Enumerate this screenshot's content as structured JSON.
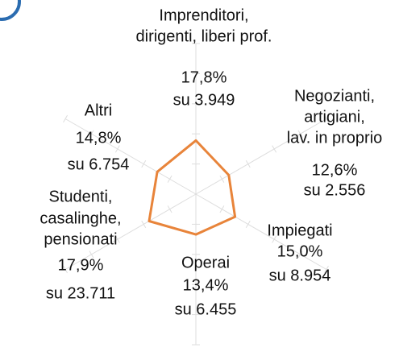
{
  "chart_data": {
    "type": "radar",
    "categories": [
      [
        "Imprenditori,",
        "dirigenti, liberi prof."
      ],
      [
        "Negozianti,",
        "artigiani,",
        "lav. in proprio"
      ],
      [
        "Impiegati"
      ],
      [
        "Operai"
      ],
      [
        "Studenti,",
        "casalinghe,",
        "pensionati"
      ],
      [
        "Altri"
      ]
    ],
    "values": [
      17.8,
      12.6,
      15.0,
      13.4,
      17.9,
      14.8
    ],
    "value_labels": [
      "17,8%",
      "12,6%",
      "15,0%",
      "13,4%",
      "17,9%",
      "14,8%"
    ],
    "count_labels": [
      "su 3.949",
      "su 2.556",
      "su 8.954",
      "su 6.455",
      "su 23.711",
      "su 6.754"
    ],
    "color": "#e8843a",
    "rlim": [
      0,
      50
    ],
    "rticks": [
      10,
      20,
      30,
      40,
      50
    ]
  }
}
